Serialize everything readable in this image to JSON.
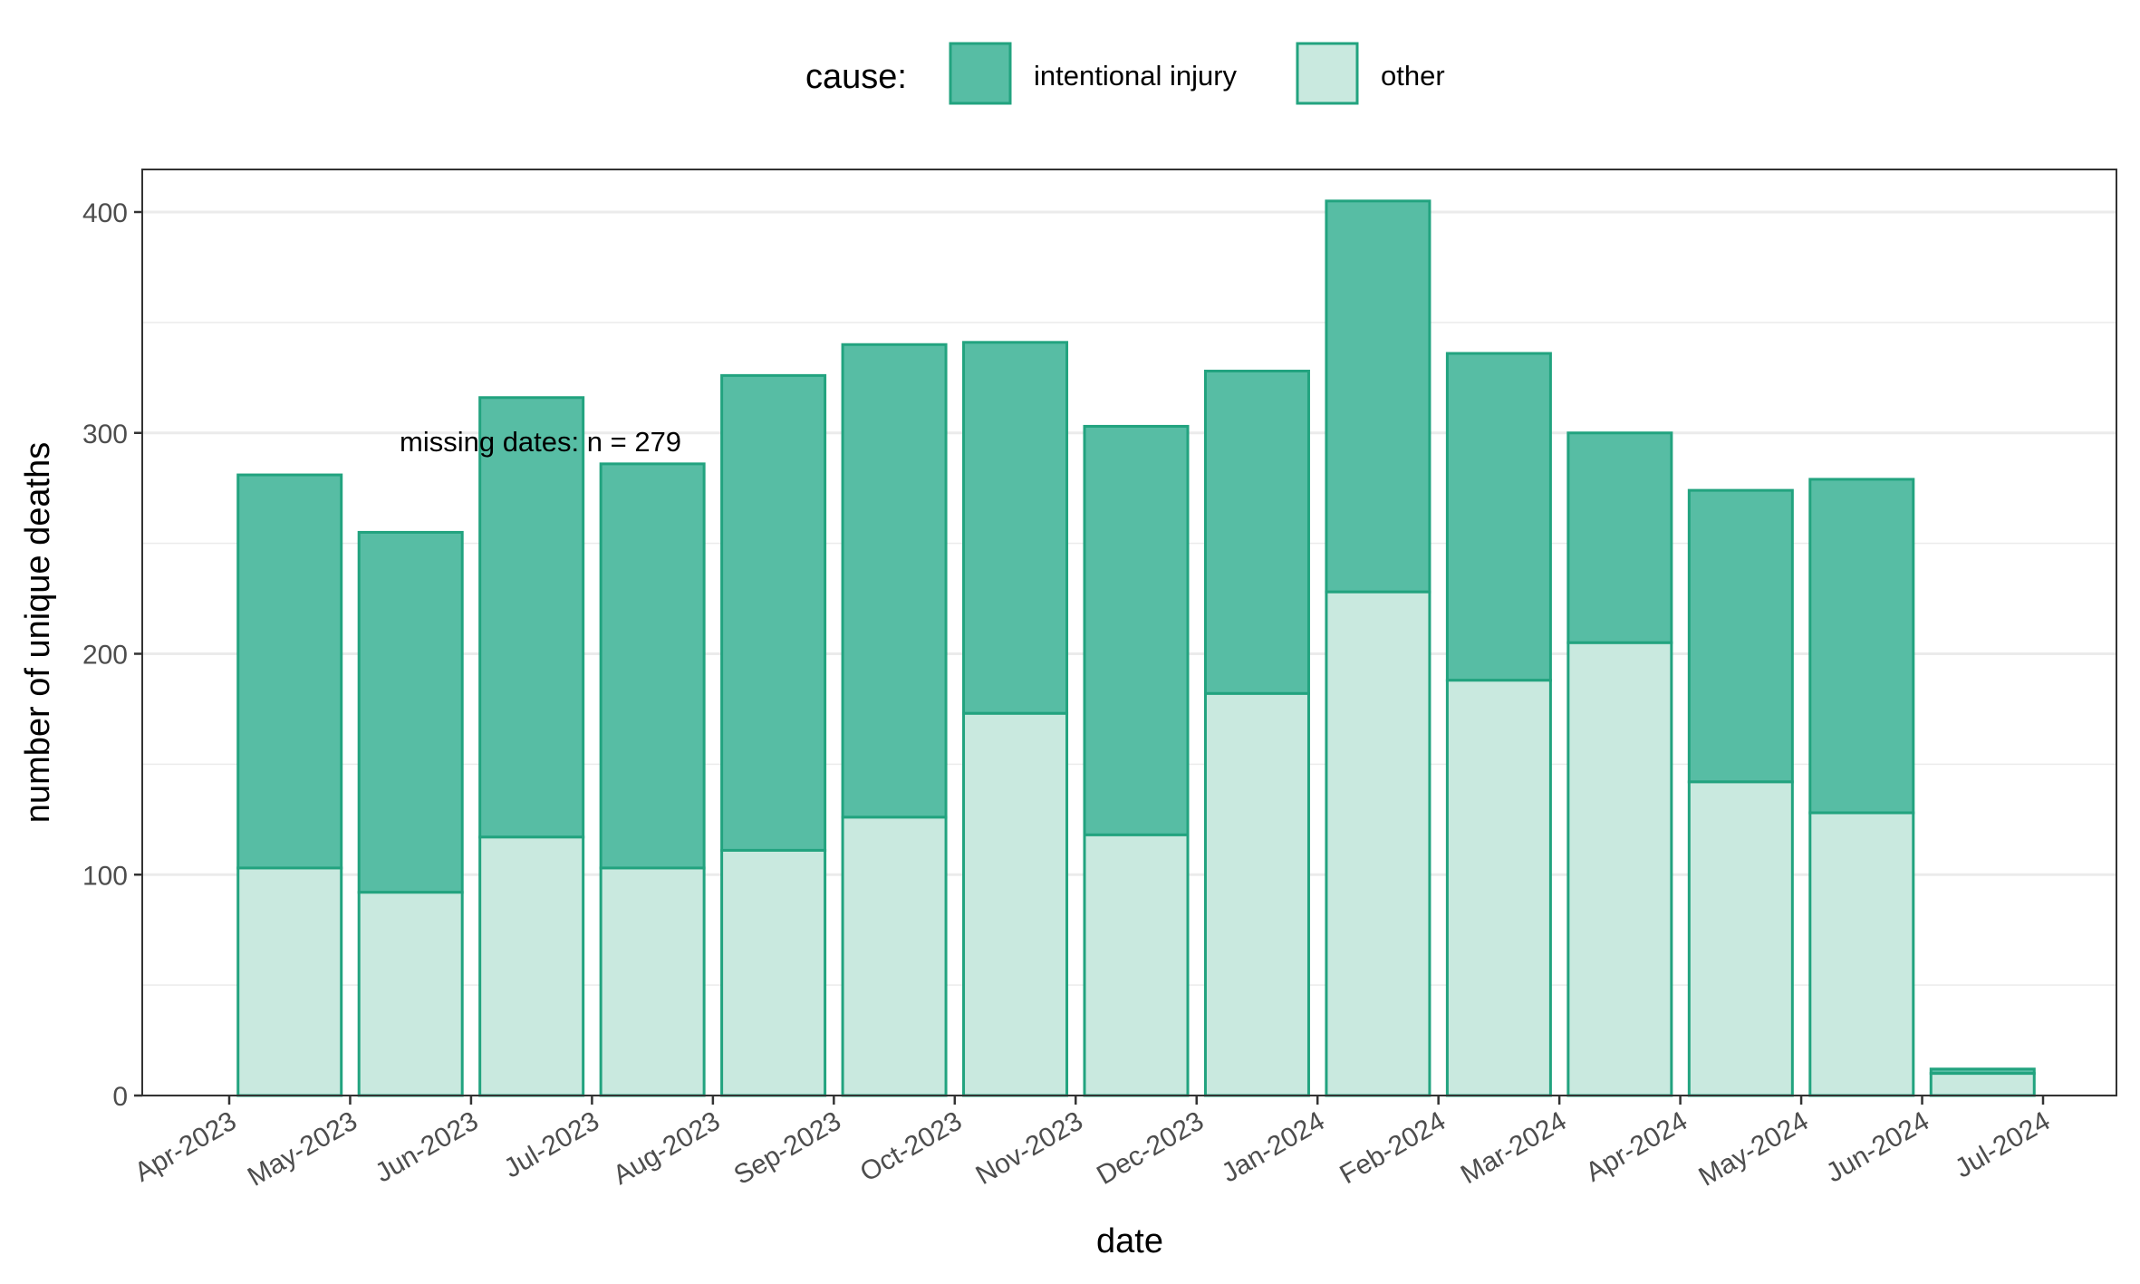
{
  "chart_data": {
    "type": "bar",
    "stacked": true,
    "xlabel": "date",
    "ylabel": "number of unique deaths",
    "ylim": [
      0,
      425
    ],
    "y_ticks": [
      0,
      100,
      200,
      300,
      400
    ],
    "x_tick_labels": [
      "Apr-2023",
      "May-2023",
      "Jun-2023",
      "Jul-2023",
      "Aug-2023",
      "Sep-2023",
      "Oct-2023",
      "Nov-2023",
      "Dec-2023",
      "Jan-2024",
      "Feb-2024",
      "Mar-2024",
      "Apr-2024",
      "May-2024",
      "Jun-2024",
      "Jul-2024"
    ],
    "categories": [
      "Apr-2023",
      "May-2023",
      "Jun-2023",
      "Jul-2023",
      "Aug-2023",
      "Sep-2023",
      "Oct-2023",
      "Nov-2023",
      "Dec-2023",
      "Jan-2024",
      "Feb-2024",
      "Mar-2024",
      "Apr-2024",
      "May-2024",
      "Jun-2024"
    ],
    "series": [
      {
        "name": "other",
        "values": [
          103,
          92,
          117,
          103,
          111,
          126,
          173,
          118,
          182,
          228,
          188,
          205,
          142,
          128,
          10
        ]
      },
      {
        "name": "intentional injury",
        "values": [
          178,
          163,
          199,
          183,
          215,
          214,
          168,
          185,
          146,
          177,
          148,
          95,
          132,
          151,
          2
        ]
      }
    ],
    "legend": {
      "title": "cause:",
      "position": "top",
      "entries": [
        "intentional injury",
        "other"
      ]
    },
    "annotation": "missing dates: n = 279",
    "grid": true,
    "colors": {
      "intentional injury": "#57bda4",
      "other": "#c9e9df",
      "outline": "#22a37f",
      "grid": "#ebebeb",
      "panel_border": "#333333"
    }
  }
}
